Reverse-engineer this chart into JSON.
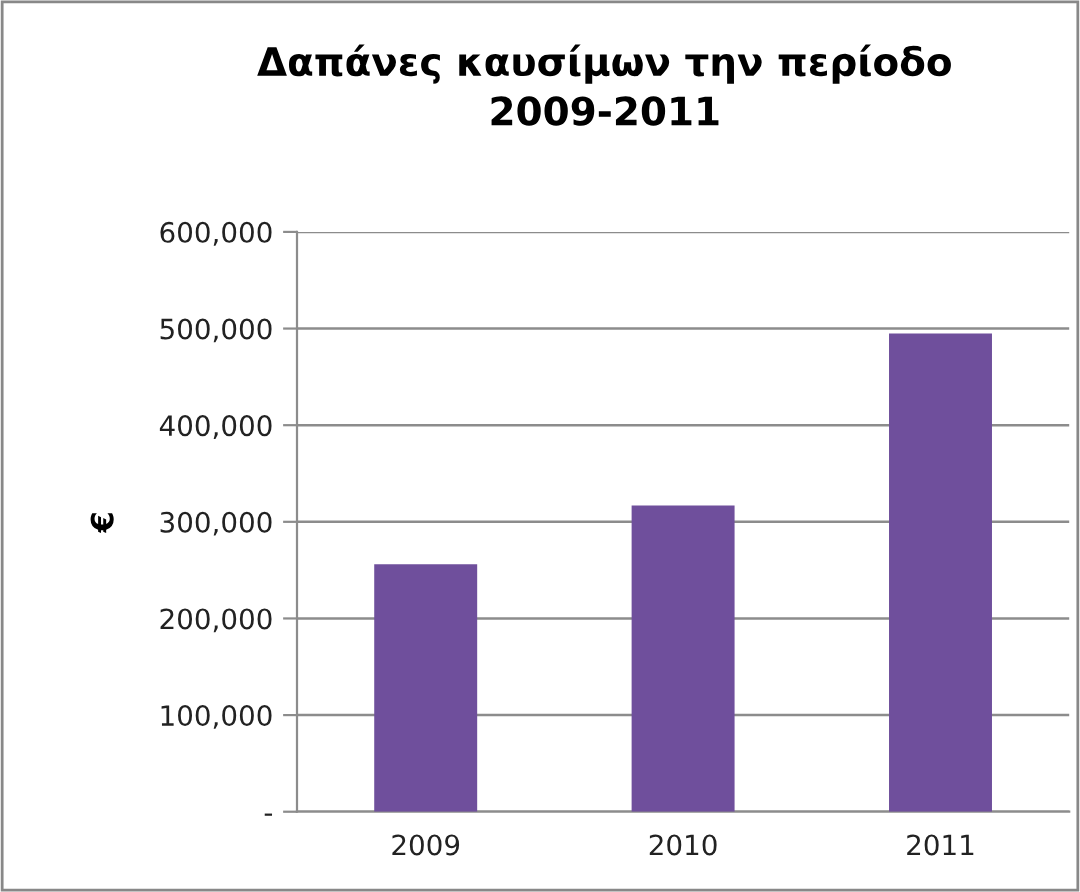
{
  "chart_data": {
    "type": "bar",
    "title": "Δαπάνες καυσίμων την περίοδο\n2009-2011",
    "ylabel": "€",
    "categories": [
      "2009",
      "2010",
      "2011"
    ],
    "values": [
      256000,
      317000,
      495000
    ],
    "color": "#6f4f9c",
    "ylim": [
      0,
      600000
    ],
    "yticks": [
      {
        "value": 0,
        "label": "-"
      },
      {
        "value": 100000,
        "label": "100,000"
      },
      {
        "value": 200000,
        "label": "200,000"
      },
      {
        "value": 300000,
        "label": "300,000"
      },
      {
        "value": 400000,
        "label": "400,000"
      },
      {
        "value": 500000,
        "label": "500,000"
      },
      {
        "value": 600000,
        "label": "600,000"
      }
    ],
    "grid": "y",
    "legend": false
  }
}
